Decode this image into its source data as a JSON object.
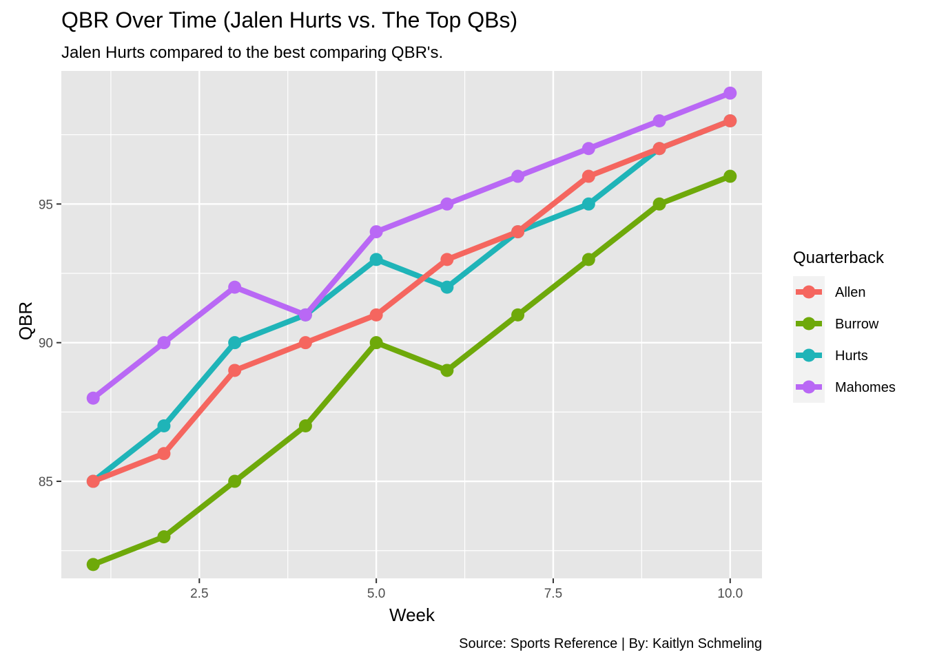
{
  "chart_data": {
    "type": "line",
    "title": "QBR Over Time (Jalen Hurts vs. The Top QBs)",
    "subtitle": "Jalen Hurts compared to the best comparing QBR's.",
    "caption": "Source: Sports Reference | By: Kaitlyn Schmeling",
    "xlabel": "Week",
    "ylabel": "QBR",
    "xlim": [
      0.55,
      10.45
    ],
    "ylim": [
      81.5,
      99.8
    ],
    "x_ticks": [
      2.5,
      5.0,
      7.5,
      10.0
    ],
    "x_tick_labels": [
      "2.5",
      "5.0",
      "7.5",
      "10.0"
    ],
    "x_minor_ticks": [
      1.25,
      3.75,
      6.25,
      8.75
    ],
    "y_ticks": [
      85,
      90,
      95
    ],
    "y_tick_labels": [
      "85",
      "90",
      "95"
    ],
    "y_minor_ticks": [
      82.5,
      87.5,
      92.5,
      97.5
    ],
    "grid": true,
    "legend": {
      "title": "Quarterback",
      "position": "right"
    },
    "x": [
      1,
      2,
      3,
      4,
      5,
      6,
      7,
      8,
      9,
      10
    ],
    "series": [
      {
        "name": "Hurts",
        "color": "#1FB4B8",
        "values": [
          85,
          87,
          90,
          91,
          93,
          92,
          94,
          95,
          97,
          98
        ]
      },
      {
        "name": "Burrow",
        "color": "#6EA90A",
        "values": [
          82,
          83,
          85,
          87,
          90,
          89,
          91,
          93,
          95,
          96
        ]
      },
      {
        "name": "Mahomes",
        "color": "#B968F5",
        "values": [
          88,
          90,
          92,
          91,
          94,
          95,
          96,
          97,
          98,
          99
        ]
      },
      {
        "name": "Allen",
        "color": "#F5665F",
        "values": [
          85,
          86,
          89,
          90,
          91,
          93,
          94,
          96,
          97,
          98
        ]
      }
    ],
    "legend_order": [
      "Allen",
      "Burrow",
      "Hurts",
      "Mahomes"
    ],
    "panel_background": "#E6E6E6"
  }
}
